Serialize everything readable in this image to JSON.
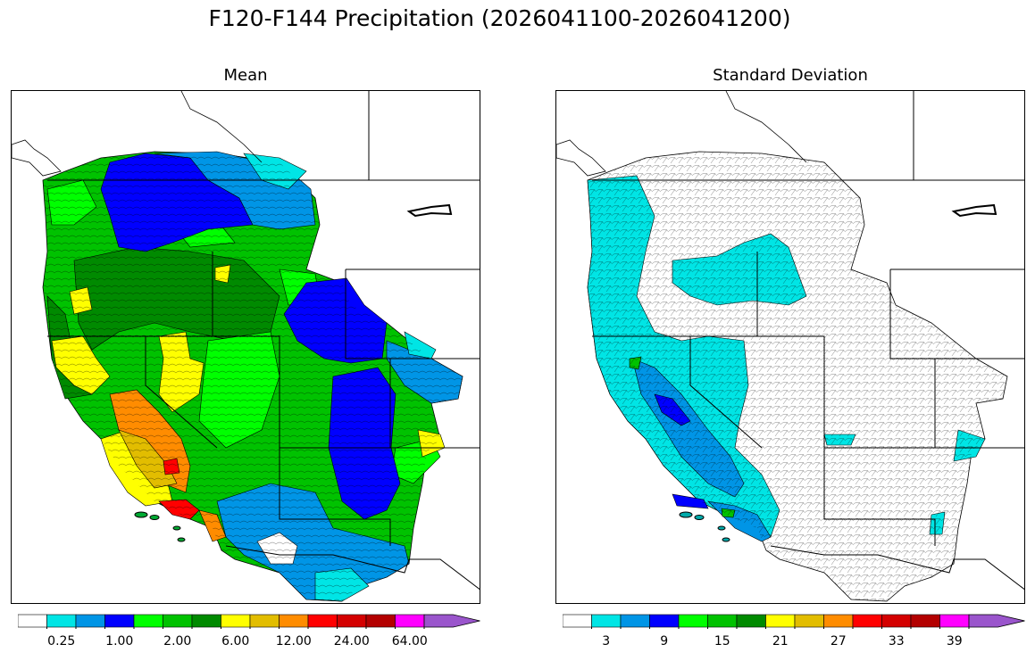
{
  "figure": {
    "title": "F120-F144 Precipitation (2026041100-2026041200)"
  },
  "panels": [
    {
      "title": "Mean",
      "colorbar": {
        "colors": [
          "#ffffff",
          "#00e5e5",
          "#0095e6",
          "#0000ff",
          "#00ff00",
          "#00c200",
          "#008a00",
          "#ffff00",
          "#e2bd00",
          "#ff8c00",
          "#ff0000",
          "#d40000",
          "#b30000",
          "#ff00ff",
          "#9a55cc"
        ],
        "tick_labels": [
          "0.25",
          "1.00",
          "2.00",
          "6.00",
          "12.00",
          "24.00",
          "64.00"
        ],
        "extend": "max"
      }
    },
    {
      "title": "Standard Deviation",
      "colorbar": {
        "colors": [
          "#ffffff",
          "#00e5e5",
          "#0095e6",
          "#0000ff",
          "#00ff00",
          "#00c200",
          "#008a00",
          "#ffff00",
          "#e2bd00",
          "#ff8c00",
          "#ff0000",
          "#d40000",
          "#b30000",
          "#ff00ff",
          "#9a55cc"
        ],
        "tick_labels": [
          "3",
          "9",
          "15",
          "21",
          "27",
          "33",
          "39"
        ],
        "extend": "max"
      }
    }
  ]
}
